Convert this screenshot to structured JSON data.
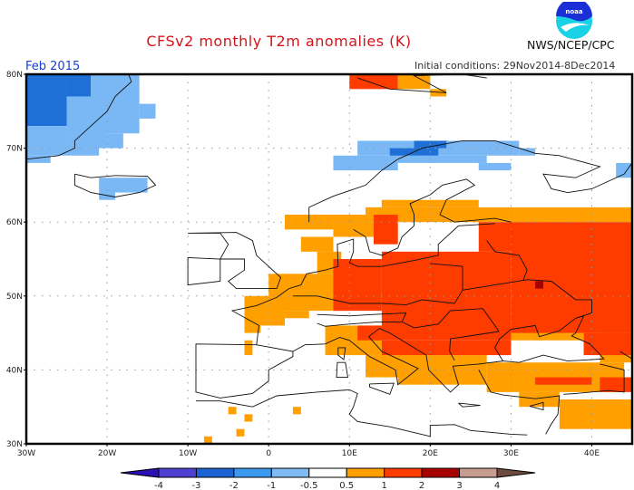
{
  "header": {
    "title": "CFSv2 monthly T2m anomalies (K)",
    "period": "Feb 2015",
    "agency": "NWS/NCEP/CPC",
    "initial_conditions": "Initial conditions: 29Nov2014-8Dec2014",
    "logo": "noaa-logo",
    "logo_text": "noaa"
  },
  "map": {
    "lon_range": [
      -30,
      45
    ],
    "lat_range": [
      30,
      80
    ],
    "lon_ticks": [
      {
        "value": -30,
        "label": "30W"
      },
      {
        "value": -20,
        "label": "20W"
      },
      {
        "value": -10,
        "label": "10W"
      },
      {
        "value": 0,
        "label": "0"
      },
      {
        "value": 10,
        "label": "10E"
      },
      {
        "value": 20,
        "label": "20E"
      },
      {
        "value": 30,
        "label": "30E"
      },
      {
        "value": 40,
        "label": "40E"
      }
    ],
    "lat_ticks": [
      {
        "value": 30,
        "label": "30N"
      },
      {
        "value": 40,
        "label": "40N"
      },
      {
        "value": 50,
        "label": "50N"
      },
      {
        "value": 60,
        "label": "60N"
      },
      {
        "value": 70,
        "label": "70N"
      },
      {
        "value": 80,
        "label": "80N"
      }
    ],
    "gridlines": "dotted",
    "categories": {
      "b2": {
        "range": "-2 to -1",
        "color": "#1e6fd6"
      },
      "b1": {
        "range": "-1 to -0.5",
        "color": "#7ab8f5"
      },
      "o": {
        "range": "0.5 to 1",
        "color": "#ff9f00"
      },
      "r": {
        "range": "1 to 2",
        "color": "#ff3c00"
      },
      "d": {
        "range": "2 to 3",
        "color": "#a50000"
      }
    },
    "anomaly_regions": [
      {
        "cat": "b2",
        "lon": [
          -30,
          -25
        ],
        "lat": [
          73,
          80
        ]
      },
      {
        "cat": "b2",
        "lon": [
          -25,
          -22
        ],
        "lat": [
          77,
          80
        ]
      },
      {
        "cat": "b1",
        "lon": [
          -25,
          -21
        ],
        "lat": [
          69,
          77
        ]
      },
      {
        "cat": "b1",
        "lon": [
          -22,
          -20
        ],
        "lat": [
          70,
          80
        ]
      },
      {
        "cat": "b1",
        "lon": [
          -30,
          -25
        ],
        "lat": [
          69,
          73
        ]
      },
      {
        "cat": "b1",
        "lon": [
          -30,
          -27
        ],
        "lat": [
          68,
          69
        ]
      },
      {
        "cat": "b1",
        "lon": [
          -21,
          -16
        ],
        "lat": [
          72,
          80
        ]
      },
      {
        "cat": "b1",
        "lon": [
          -20,
          -18
        ],
        "lat": [
          70,
          72
        ]
      },
      {
        "cat": "b1",
        "lon": [
          -16,
          -14
        ],
        "lat": [
          74,
          76
        ]
      },
      {
        "cat": "b1",
        "lon": [
          -21,
          -15
        ],
        "lat": [
          64,
          66
        ]
      },
      {
        "cat": "b1",
        "lon": [
          -21,
          -19
        ],
        "lat": [
          63,
          64
        ]
      },
      {
        "cat": "b1",
        "lon": [
          11,
          31
        ],
        "lat": [
          69,
          71
        ]
      },
      {
        "cat": "b1",
        "lon": [
          8,
          16
        ],
        "lat": [
          67,
          69
        ]
      },
      {
        "cat": "b1",
        "lon": [
          16,
          27
        ],
        "lat": [
          68,
          69
        ]
      },
      {
        "cat": "b1",
        "lon": [
          26,
          30
        ],
        "lat": [
          67,
          68
        ]
      },
      {
        "cat": "b1",
        "lon": [
          31,
          33
        ],
        "lat": [
          69,
          70
        ]
      },
      {
        "cat": "b1",
        "lon": [
          43,
          45
        ],
        "lat": [
          66,
          68
        ]
      },
      {
        "cat": "b2",
        "lon": [
          15,
          21
        ],
        "lat": [
          69,
          70
        ]
      },
      {
        "cat": "b2",
        "lon": [
          18,
          22
        ],
        "lat": [
          70,
          71
        ]
      },
      {
        "cat": "r",
        "lon": [
          10,
          16
        ],
        "lat": [
          78,
          80
        ]
      },
      {
        "cat": "o",
        "lon": [
          16,
          20
        ],
        "lat": [
          78,
          80
        ]
      },
      {
        "cat": "o",
        "lon": [
          20,
          22
        ],
        "lat": [
          77,
          78
        ]
      },
      {
        "cat": "o",
        "lon": [
          12,
          34
        ],
        "lat": [
          60,
          62
        ]
      },
      {
        "cat": "o",
        "lon": [
          14,
          26
        ],
        "lat": [
          62,
          63
        ]
      },
      {
        "cat": "o",
        "lon": [
          34,
          45
        ],
        "lat": [
          60,
          62
        ]
      },
      {
        "cat": "o",
        "lon": [
          2,
          8
        ],
        "lat": [
          59,
          61
        ]
      },
      {
        "cat": "o",
        "lon": [
          8,
          14
        ],
        "lat": [
          58,
          61
        ]
      },
      {
        "cat": "o",
        "lon": [
          4,
          8
        ],
        "lat": [
          56,
          58
        ]
      },
      {
        "cat": "o",
        "lon": [
          6,
          9
        ],
        "lat": [
          53,
          56
        ]
      },
      {
        "cat": "o",
        "lon": [
          0,
          10
        ],
        "lat": [
          48,
          53
        ]
      },
      {
        "cat": "o",
        "lon": [
          -3,
          2
        ],
        "lat": [
          46,
          50
        ]
      },
      {
        "cat": "o",
        "lon": [
          2,
          5
        ],
        "lat": [
          47,
          48
        ]
      },
      {
        "cat": "o",
        "lon": [
          -3,
          -1
        ],
        "lat": [
          45,
          46
        ]
      },
      {
        "cat": "o",
        "lon": [
          -3,
          -2
        ],
        "lat": [
          42,
          44
        ]
      },
      {
        "cat": "o",
        "lon": [
          7,
          14
        ],
        "lat": [
          42,
          46
        ]
      },
      {
        "cat": "o",
        "lon": [
          12,
          19
        ],
        "lat": [
          39,
          42
        ]
      },
      {
        "cat": "o",
        "lon": [
          16,
          27
        ],
        "lat": [
          38,
          42
        ]
      },
      {
        "cat": "o",
        "lon": [
          27,
          44
        ],
        "lat": [
          37,
          41
        ]
      },
      {
        "cat": "o",
        "lon": [
          31,
          36
        ],
        "lat": [
          35,
          37
        ]
      },
      {
        "cat": "o",
        "lon": [
          36,
          45
        ],
        "lat": [
          32,
          36
        ]
      },
      {
        "cat": "o",
        "lon": [
          41,
          45
        ],
        "lat": [
          41,
          45
        ]
      },
      {
        "cat": "o",
        "lon": [
          28,
          34
        ],
        "lat": [
          44,
          46
        ]
      },
      {
        "cat": "o",
        "lon": [
          33,
          39
        ],
        "lat": [
          44,
          46
        ]
      },
      {
        "cat": "o",
        "lon": [
          -5,
          -4
        ],
        "lat": [
          34,
          35
        ]
      },
      {
        "cat": "o",
        "lon": [
          -3,
          -2
        ],
        "lat": [
          33,
          34
        ]
      },
      {
        "cat": "o",
        "lon": [
          -4,
          -3
        ],
        "lat": [
          31,
          32
        ]
      },
      {
        "cat": "o",
        "lon": [
          -8,
          -7
        ],
        "lat": [
          30,
          31
        ]
      },
      {
        "cat": "o",
        "lon": [
          3,
          4
        ],
        "lat": [
          34,
          35
        ]
      },
      {
        "cat": "r",
        "lon": [
          8,
          14
        ],
        "lat": [
          48,
          55
        ]
      },
      {
        "cat": "r",
        "lon": [
          14,
          30
        ],
        "lat": [
          44,
          56
        ]
      },
      {
        "cat": "r",
        "lon": [
          30,
          45
        ],
        "lat": [
          45,
          58
        ]
      },
      {
        "cat": "r",
        "lon": [
          26,
          45
        ],
        "lat": [
          56,
          60
        ]
      },
      {
        "cat": "r",
        "lon": [
          14,
          30
        ],
        "lat": [
          42,
          44
        ]
      },
      {
        "cat": "r",
        "lon": [
          11,
          14
        ],
        "lat": [
          44,
          46
        ]
      },
      {
        "cat": "r",
        "lon": [
          13,
          16
        ],
        "lat": [
          57,
          61
        ]
      },
      {
        "cat": "r",
        "lon": [
          39,
          45
        ],
        "lat": [
          42,
          45
        ]
      },
      {
        "cat": "r",
        "lon": [
          33,
          40
        ],
        "lat": [
          38,
          39
        ]
      },
      {
        "cat": "r",
        "lon": [
          41,
          45
        ],
        "lat": [
          37,
          39
        ]
      },
      {
        "cat": "d",
        "lon": [
          33,
          34
        ],
        "lat": [
          51,
          52
        ]
      }
    ],
    "colorbar": {
      "labels": [
        "-4",
        "-3",
        "-2",
        "-1",
        "-0.5",
        "0.5",
        "1",
        "2",
        "3",
        "4"
      ],
      "colors": [
        "#2c0fb5",
        "#5040d2",
        "#1b63d2",
        "#3b9aef",
        "#80baf5",
        "#ffffff",
        "#ffa000",
        "#ff3c00",
        "#a80000",
        "#c89c90",
        "#6e4a3e"
      ]
    }
  }
}
